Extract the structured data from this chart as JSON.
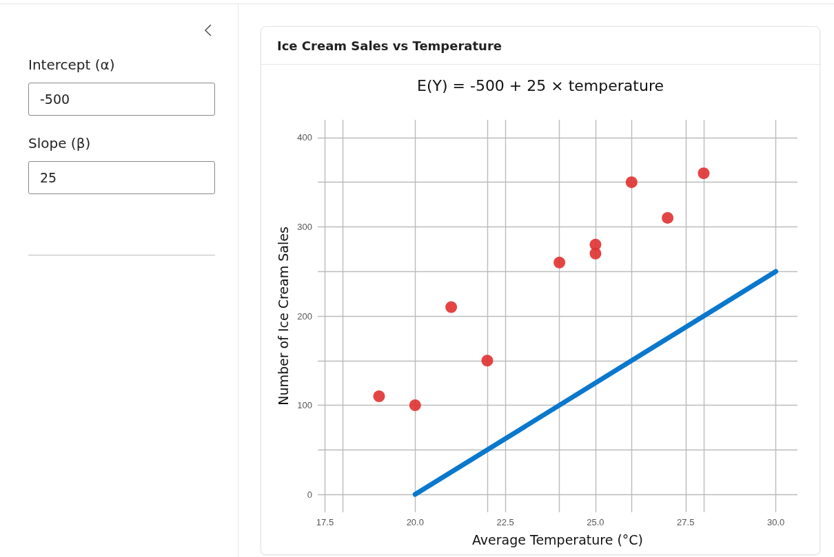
{
  "chart_data": {
    "type": "scatter",
    "title": "Ice Cream Sales vs Temperature",
    "subtitle": "E(Y) = -500 + 25 × temperature",
    "xlabel": "Average Temperature (°C)",
    "ylabel": "Number of Ice Cream Sales",
    "annotations": [
      "Intercept (α)",
      "-500",
      "Slope (β)",
      "25"
    ],
    "xlim": [
      17.3,
      30.6
    ],
    "xticks": [
      17.5,
      {
        "value": 18,
        "label": null
      },
      {
        "value": 20,
        "label": "20.0"
      },
      {
        "value": 22,
        "label": null
      },
      22.5,
      {
        "value": 24,
        "label": null
      },
      {
        "value": 25,
        "label": "25.0"
      },
      {
        "value": 26,
        "label": null
      },
      27.5,
      {
        "value": 28,
        "label": null
      },
      {
        "value": 30,
        "label": "30.0"
      }
    ],
    "ylim": [
      -20,
      420
    ],
    "yticks": [
      0,
      {
        "value": 50,
        "label": null
      },
      100,
      {
        "value": 150,
        "label": null
      },
      200,
      {
        "value": 250,
        "label": null
      },
      300,
      {
        "value": 350,
        "label": null
      },
      400
    ],
    "grid": true,
    "series": [
      {
        "marker": "circle",
        "color": "#e03131",
        "x": [
          19,
          20,
          21,
          22,
          24,
          25,
          25,
          26,
          27,
          28
        ],
        "values": [
          110,
          100,
          210,
          150,
          260,
          280,
          270,
          350,
          310,
          360
        ]
      },
      {
        "type": "line",
        "marker": "none",
        "line_style": "solid",
        "color": "#0a78cc",
        "x": [
          20,
          30
        ],
        "values": [
          0,
          250
        ]
      }
    ]
  }
}
